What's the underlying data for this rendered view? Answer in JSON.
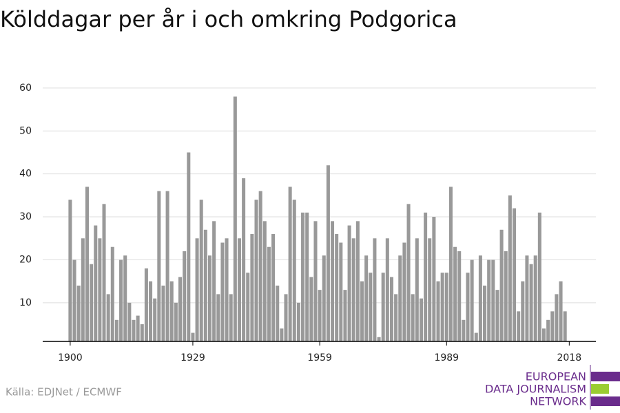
{
  "chart_data": {
    "type": "bar",
    "title": "Kölddagar per år i och omkring Podgorica",
    "source": "Källa: EDJNet / ECMWF",
    "logo": [
      "EUROPEAN",
      "DATA JOURNALISM",
      "NETWORK"
    ],
    "x": [
      1900,
      1901,
      1902,
      1903,
      1904,
      1905,
      1906,
      1907,
      1908,
      1909,
      1910,
      1911,
      1912,
      1913,
      1914,
      1915,
      1916,
      1917,
      1918,
      1919,
      1920,
      1921,
      1922,
      1923,
      1924,
      1925,
      1926,
      1927,
      1928,
      1929,
      1930,
      1931,
      1932,
      1933,
      1934,
      1935,
      1936,
      1937,
      1938,
      1939,
      1940,
      1941,
      1942,
      1943,
      1944,
      1945,
      1946,
      1947,
      1948,
      1949,
      1950,
      1951,
      1952,
      1953,
      1954,
      1955,
      1956,
      1957,
      1958,
      1959,
      1960,
      1961,
      1962,
      1963,
      1964,
      1965,
      1966,
      1967,
      1968,
      1969,
      1970,
      1971,
      1972,
      1973,
      1974,
      1975,
      1976,
      1977,
      1978,
      1979,
      1980,
      1981,
      1982,
      1983,
      1984,
      1985,
      1986,
      1987,
      1988,
      1989,
      1990,
      1991,
      1992,
      1993,
      1994,
      1995,
      1996,
      1997,
      1998,
      1999,
      2000,
      2001,
      2002,
      2003,
      2004,
      2005,
      2006,
      2007,
      2008,
      2009,
      2010,
      2011,
      2012,
      2013,
      2014,
      2015,
      2016,
      2017
    ],
    "values": [
      34,
      20,
      14,
      25,
      37,
      19,
      28,
      25,
      33,
      12,
      23,
      6,
      20,
      21,
      10,
      6,
      7,
      5,
      18,
      15,
      11,
      36,
      14,
      36,
      15,
      10,
      16,
      22,
      45,
      3,
      25,
      34,
      27,
      21,
      29,
      12,
      24,
      25,
      12,
      58,
      25,
      39,
      17,
      26,
      34,
      36,
      29,
      23,
      26,
      14,
      4,
      12,
      37,
      34,
      10,
      31,
      31,
      16,
      29,
      13,
      21,
      42,
      29,
      26,
      24,
      13,
      28,
      25,
      29,
      15,
      21,
      17,
      25,
      2,
      17,
      25,
      16,
      12,
      21,
      24,
      33,
      12,
      25,
      11,
      31,
      25,
      30,
      15,
      17,
      17,
      37,
      23,
      22,
      6,
      17,
      20,
      3,
      21,
      14,
      20,
      20,
      13,
      27,
      22,
      35,
      32,
      8,
      15,
      21,
      19,
      21,
      31,
      4,
      6,
      8,
      12,
      15,
      8
    ],
    "color": "#999999",
    "xlim": [
      1893.5,
      2024.3
    ],
    "xticks": [
      1900,
      1929,
      1959,
      1989,
      2018
    ],
    "ylim": [
      1,
      62
    ],
    "yticks": [
      10,
      20,
      30,
      40,
      50,
      60
    ],
    "grid": true
  }
}
